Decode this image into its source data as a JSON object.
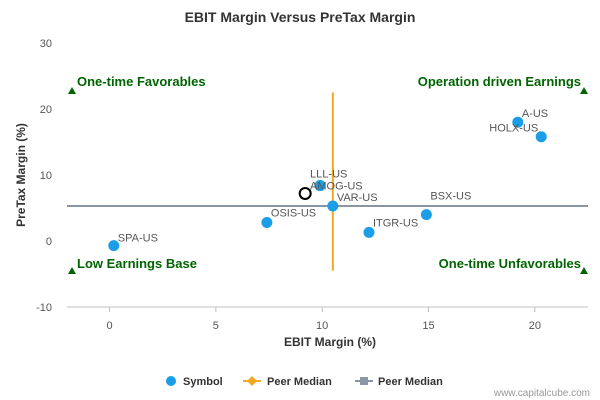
{
  "chart_data": {
    "type": "scatter",
    "title": "EBIT Margin Versus PreTax Margin",
    "xlabel": "EBIT Margin (%)",
    "ylabel": "PreTax Margin (%)",
    "xlim": [
      -2,
      22.5
    ],
    "ylim": [
      -10,
      30
    ],
    "x_ticks": [
      0,
      5,
      10,
      15,
      20
    ],
    "y_ticks": [
      -10,
      0,
      10,
      20,
      30
    ],
    "grid": false,
    "series": [
      {
        "name": "Symbol",
        "color": "#1a9ee8",
        "points": [
          {
            "label": "A-US",
            "x": 19.2,
            "y": 18.0
          },
          {
            "label": "HOLX-US",
            "x": 20.3,
            "y": 15.8
          },
          {
            "label": "LLL-US",
            "x": 9.9,
            "y": 8.4
          },
          {
            "label": "AMOG-US",
            "x": 9.9,
            "y": 8.4
          },
          {
            "label": "VAR-US",
            "x": 10.5,
            "y": 5.3
          },
          {
            "label": "BSX-US",
            "x": 14.9,
            "y": 4.0
          },
          {
            "label": "OSIS-US",
            "x": 7.4,
            "y": 2.8
          },
          {
            "label": "ITGR-US",
            "x": 12.2,
            "y": 1.3
          },
          {
            "label": "SPA-US",
            "x": 0.2,
            "y": -0.7
          }
        ]
      }
    ],
    "highlight_point": {
      "x": 9.2,
      "y": 7.2
    },
    "peer_median_x": {
      "name": "Peer Median",
      "value": 10.5,
      "y_range": [
        -4.5,
        22.5
      ],
      "color": "#f5a623"
    },
    "peer_median_y": {
      "name": "Peer Median",
      "value": 5.3,
      "color": "#8a96a3"
    },
    "quadrant_labels": {
      "top_left": "One-time Favorables",
      "top_right": "Operation driven Earnings",
      "bottom_left": "Low Earnings Base",
      "bottom_right": "One-time Unfavorables"
    },
    "legend": {
      "placement": "bottom-center",
      "items": [
        {
          "label": "Symbol",
          "color": "#1a9ee8",
          "marker": "circle"
        },
        {
          "label": "Peer Median",
          "color": "#f5a623",
          "marker": "diamond-line"
        },
        {
          "label": "Peer Median",
          "color": "#8a96a3",
          "marker": "square-line"
        }
      ]
    },
    "credit": "www.capitalcube.com"
  }
}
